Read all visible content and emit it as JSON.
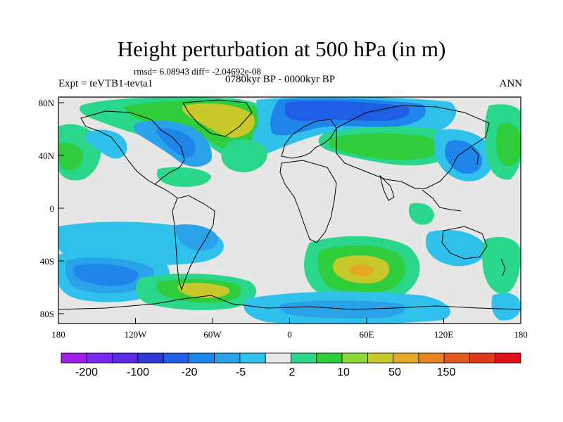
{
  "title": "Height perturbation at 500 hPa (in m)",
  "stats": "rmsd= 6.08943 diff= -2.04692e-08",
  "expt": "Expt = teVTB1-tevta1",
  "period": "0780kyr BP - 0000kyr BP",
  "season": "ANN",
  "x_ticks": [
    "180",
    "120W",
    "60W",
    "0",
    "60E",
    "120E",
    "180"
  ],
  "y_ticks": [
    "80N",
    "40N",
    "0",
    "40S",
    "80S"
  ],
  "colorbar": {
    "colors": [
      "#9d1fe8",
      "#7a28f0",
      "#5b2ae8",
      "#2f39d6",
      "#1f5fe6",
      "#1e86ea",
      "#2aa2ea",
      "#2fc0ec",
      "#e8e8e8",
      "#2ad68a",
      "#2fcc3c",
      "#8fd83a",
      "#c9c82a",
      "#e3a824",
      "#e48422",
      "#e35a21",
      "#e03a1d",
      "#e0121a"
    ],
    "labels": [
      "-200",
      "-100",
      "-20",
      "-5",
      "2",
      "10",
      "50",
      "150"
    ]
  },
  "colors": {
    "background_field": "#e6e6e6",
    "coast": "#000000",
    "frame": "#000000"
  }
}
